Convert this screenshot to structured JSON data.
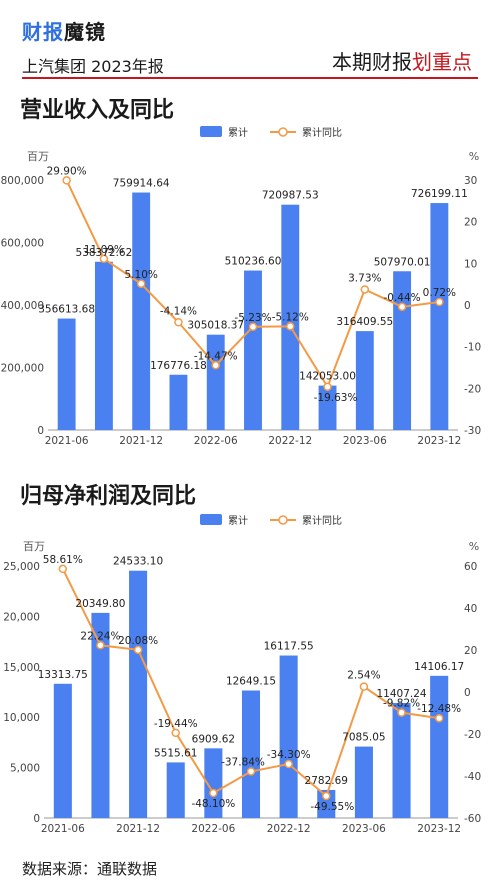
{
  "header": {
    "brand_part1": "财报",
    "brand_part2": "魔镜",
    "subtitle": "上汽集团 2023年报",
    "headline_part1": "本期财报",
    "headline_part2": "划重点"
  },
  "footer": {
    "source": "数据来源：通联数据"
  },
  "colors": {
    "bar": "#4a80f0",
    "line": "#f49a45",
    "accent_blue": "#2f6fe0",
    "accent_red": "#c8161d"
  },
  "chart_data": [
    {
      "type": "bar",
      "title": "营业收入及同比",
      "legend": [
        "累计",
        "累计同比"
      ],
      "left_unit": "百万",
      "right_unit": "%",
      "categories": [
        "2021-06",
        "2021-09",
        "2021-12",
        "2022-03",
        "2022-06",
        "2022-09",
        "2022-12",
        "2023-03",
        "2023-06",
        "2023-09",
        "2023-12"
      ],
      "x_tick_labels": [
        "2021-06",
        "2021-12",
        "2022-06",
        "2022-12",
        "2023-06",
        "2023-12"
      ],
      "series": [
        {
          "name": "累计",
          "axis": "left",
          "type": "bar",
          "values": [
            356613.68,
            538372.62,
            759914.64,
            176776.18,
            305018.37,
            510236.6,
            720987.53,
            142053.0,
            316409.55,
            507970.01,
            726199.11
          ],
          "labels": [
            "356613.68",
            "538372.62",
            "759914.64",
            "176776.18",
            "305018.37",
            "510236.60",
            "720987.53",
            "142053.00",
            "316409.55",
            "507970.01",
            "726199.11"
          ]
        },
        {
          "name": "累计同比",
          "axis": "right",
          "type": "line",
          "values": [
            29.9,
            11.09,
            5.1,
            -4.14,
            -14.47,
            -5.23,
            -5.12,
            -19.63,
            3.73,
            -0.44,
            0.72
          ],
          "labels": [
            "29.90%",
            "11.09%",
            "5.10%",
            "-4.14%",
            "-14.47%",
            "-5.23%",
            "-5.12%",
            "-19.63%",
            "3.73%",
            "-0.44%",
            "0.72%"
          ]
        }
      ],
      "left_ticks": [
        "0",
        "200,000",
        "400,000",
        "600,000",
        "800,000"
      ],
      "right_ticks": [
        "30",
        "20",
        "10",
        "0",
        "-10",
        "-20",
        "-30"
      ],
      "ylim_left": [
        0,
        800000
      ],
      "ylim_right": [
        -30,
        30
      ]
    },
    {
      "type": "bar",
      "title": "归母净利润及同比",
      "legend": [
        "累计",
        "累计同比"
      ],
      "left_unit": "百万",
      "right_unit": "%",
      "categories": [
        "2021-06",
        "2021-09",
        "2021-12",
        "2022-03",
        "2022-06",
        "2022-09",
        "2022-12",
        "2023-03",
        "2023-06",
        "2023-09",
        "2023-12"
      ],
      "x_tick_labels": [
        "2021-06",
        "2021-12",
        "2022-06",
        "2022-12",
        "2023-06",
        "2023-12"
      ],
      "series": [
        {
          "name": "累计",
          "axis": "left",
          "type": "bar",
          "values": [
            13313.75,
            20349.8,
            24533.1,
            5515.61,
            6909.62,
            12649.15,
            16117.55,
            2782.69,
            7085.05,
            11407.24,
            14106.17
          ],
          "labels": [
            "13313.75",
            "20349.80",
            "24533.10",
            "5515.61",
            "6909.62",
            "12649.15",
            "16117.55",
            "2782.69",
            "7085.05",
            "11407.24",
            "14106.17"
          ]
        },
        {
          "name": "累计同比",
          "axis": "right",
          "type": "line",
          "values": [
            58.61,
            22.24,
            20.08,
            -19.44,
            -48.1,
            -37.84,
            -34.3,
            -49.55,
            2.54,
            -9.82,
            -12.48
          ],
          "labels": [
            "58.61%",
            "22.24%",
            "20.08%",
            "-19.44%",
            "-48.10%",
            "-37.84%",
            "-34.30%",
            "-49.55%",
            "2.54%",
            "-9.82%",
            "-12.48%"
          ]
        }
      ],
      "left_ticks": [
        "0",
        "5,000",
        "10,000",
        "15,000",
        "20,000",
        "25,000"
      ],
      "right_ticks": [
        "60",
        "40",
        "20",
        "0",
        "-20",
        "-40",
        "-60"
      ],
      "ylim_left": [
        0,
        25000
      ],
      "ylim_right": [
        -60,
        60
      ]
    }
  ]
}
